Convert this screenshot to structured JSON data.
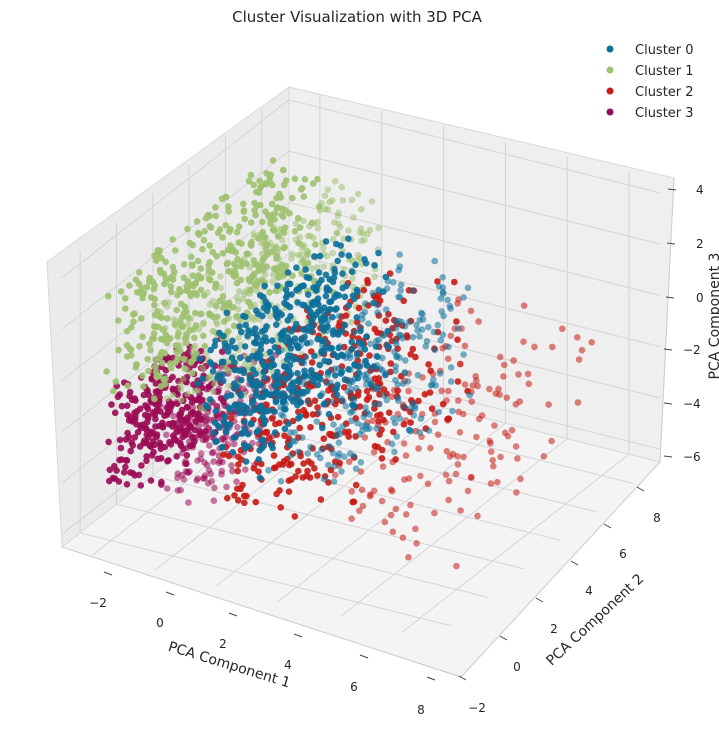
{
  "chart_data": {
    "type": "scatter",
    "projection": "3d",
    "title": "Cluster Visualization with 3D PCA",
    "xlabel": "PCA Component 1",
    "ylabel": "PCA Component 2",
    "zlabel": "PCA Component 3",
    "xlim": [
      -3,
      9
    ],
    "ylim": [
      -3,
      9.5
    ],
    "zlim": [
      -6.5,
      4.5
    ],
    "xticks": [
      "−2",
      "0",
      "2",
      "4",
      "6",
      "8"
    ],
    "yticks": [
      "−2",
      "0",
      "2",
      "4",
      "6",
      "8"
    ],
    "zticks": [
      "−6",
      "−4",
      "−2",
      "0",
      "2",
      "4"
    ],
    "legend_position": "top-right",
    "grid": true,
    "series": [
      {
        "name": "Cluster 0",
        "color": "#0a6f9a",
        "region": {
          "x": [
            0.3,
            5.2
          ],
          "y": [
            -1.2,
            6.2
          ],
          "z": [
            -3.3,
            1.8
          ]
        }
      },
      {
        "name": "Cluster 1",
        "color": "#9dc16f",
        "region": {
          "x": [
            -2.5,
            1.5
          ],
          "y": [
            -1.5,
            7.8
          ],
          "z": [
            -1.3,
            3.0
          ]
        }
      },
      {
        "name": "Cluster 2",
        "color": "#c91a14",
        "region": {
          "x": [
            1.2,
            8.3
          ],
          "y": [
            -1.3,
            7.5
          ],
          "z": [
            -5.3,
            0.5
          ]
        }
      },
      {
        "name": "Cluster 3",
        "color": "#9b0a55",
        "region": {
          "x": [
            -2.5,
            0.8
          ],
          "y": [
            -1.3,
            3.2
          ],
          "z": [
            -5.0,
            -1.2
          ]
        }
      }
    ]
  }
}
